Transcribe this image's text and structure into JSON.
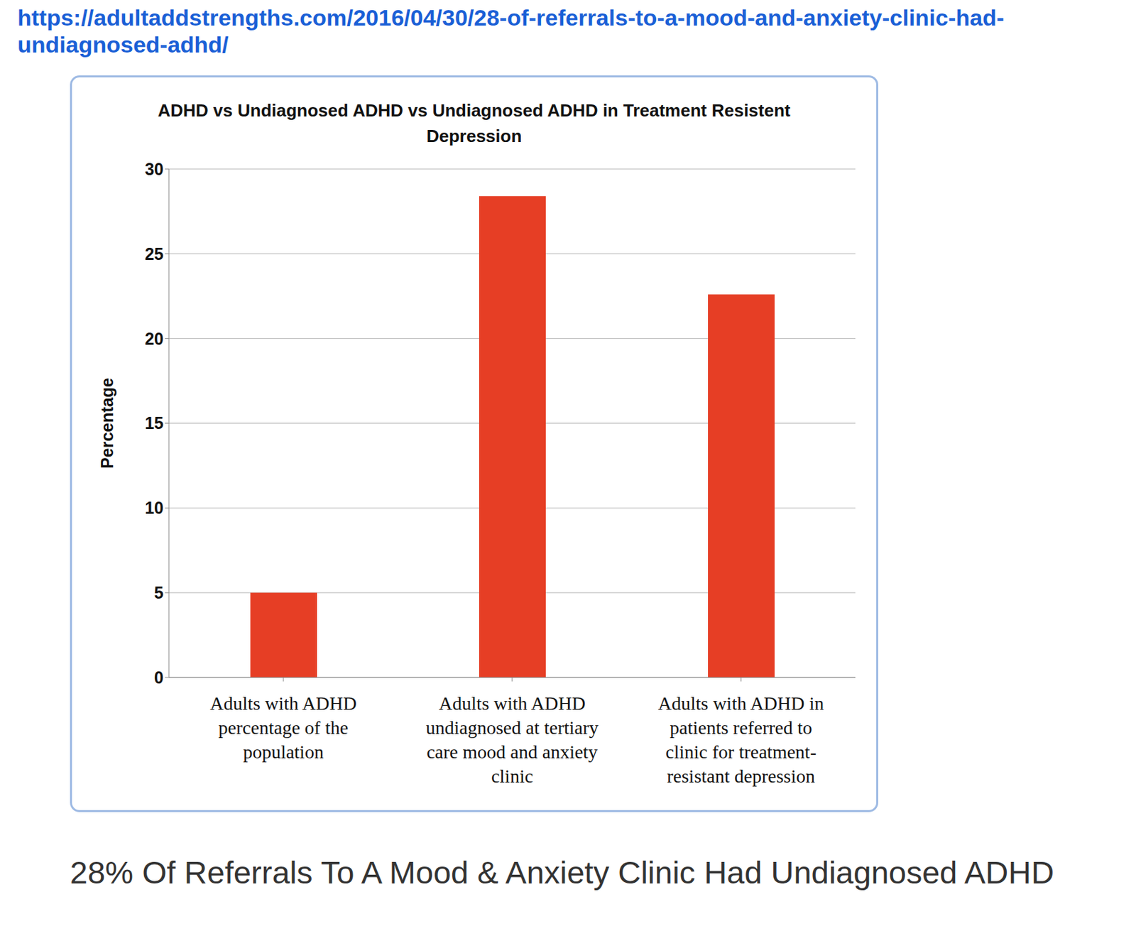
{
  "url": "https://adultaddstrengths.com/2016/04/30/28-of-referrals-to-a-mood-and-anxiety-clinic-had-undiagnosed-adhd/",
  "chart_data": {
    "type": "bar",
    "title": "ADHD vs Undiagnosed ADHD vs Undiagnosed ADHD in Treatment Resistent Depression",
    "y_label": "Percentage",
    "categories": [
      "Adults with ADHD percentage of the population",
      "Adults with ADHD undiagnosed at tertiary care mood and anxiety clinic",
      "Adults with ADHD in patients referred to clinic for treatment-resistant depression"
    ],
    "values": [
      5,
      28.4,
      22.6
    ],
    "color": "#e63e25",
    "ylim": [
      0,
      30
    ],
    "yticks": [
      0,
      5,
      10,
      15,
      20,
      25,
      30
    ],
    "grid": true
  },
  "caption": "28% Of Referrals To A Mood & Anxiety Clinic Had Undiagnosed ADHD"
}
